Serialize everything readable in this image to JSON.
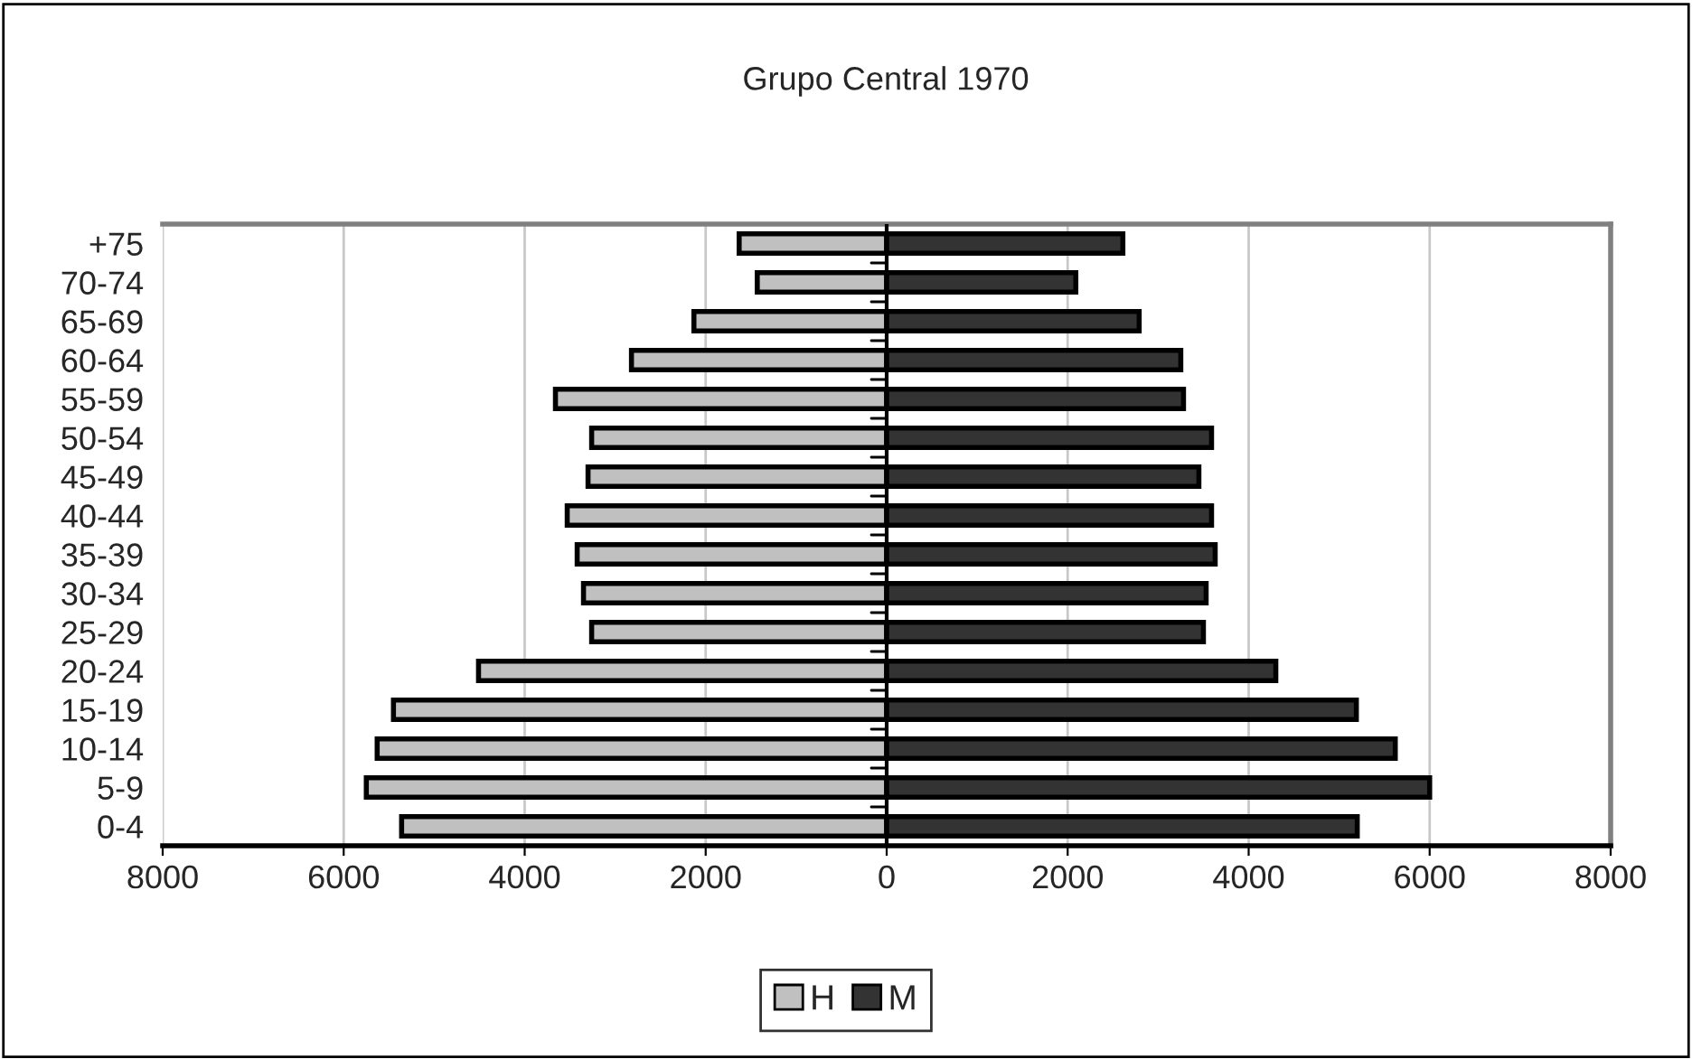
{
  "chart_data": {
    "type": "bar",
    "orientation": "horizontal",
    "stacked": true,
    "title": "Grupo Central 1970",
    "categories": [
      "+75",
      "70-74",
      "65-69",
      "60-64",
      "55-59",
      "50-54",
      "45-49",
      "40-44",
      "35-39",
      "30-34",
      "25-29",
      "20-24",
      "15-19",
      "10-14",
      "5-9",
      "0-4"
    ],
    "series": [
      {
        "name": "H",
        "color": "#c0c0c0",
        "values": [
          -1630,
          -1430,
          -2130,
          -2820,
          -3660,
          -3260,
          -3300,
          -3530,
          -3420,
          -3350,
          -3260,
          -4510,
          -5450,
          -5630,
          -5750,
          -5360
        ]
      },
      {
        "name": "M",
        "color": "#333333",
        "values": [
          2610,
          2090,
          2790,
          3250,
          3280,
          3590,
          3450,
          3590,
          3630,
          3530,
          3500,
          4300,
          5190,
          5620,
          6000,
          5200
        ]
      }
    ],
    "xlim": [
      -8000,
      8000
    ],
    "xticks": [
      {
        "value": -8000,
        "label": "8000"
      },
      {
        "value": -6000,
        "label": "6000"
      },
      {
        "value": -4000,
        "label": "4000"
      },
      {
        "value": -2000,
        "label": "2000"
      },
      0,
      2000,
      4000,
      6000,
      8000
    ],
    "grid": "x",
    "legend": "bottom"
  }
}
